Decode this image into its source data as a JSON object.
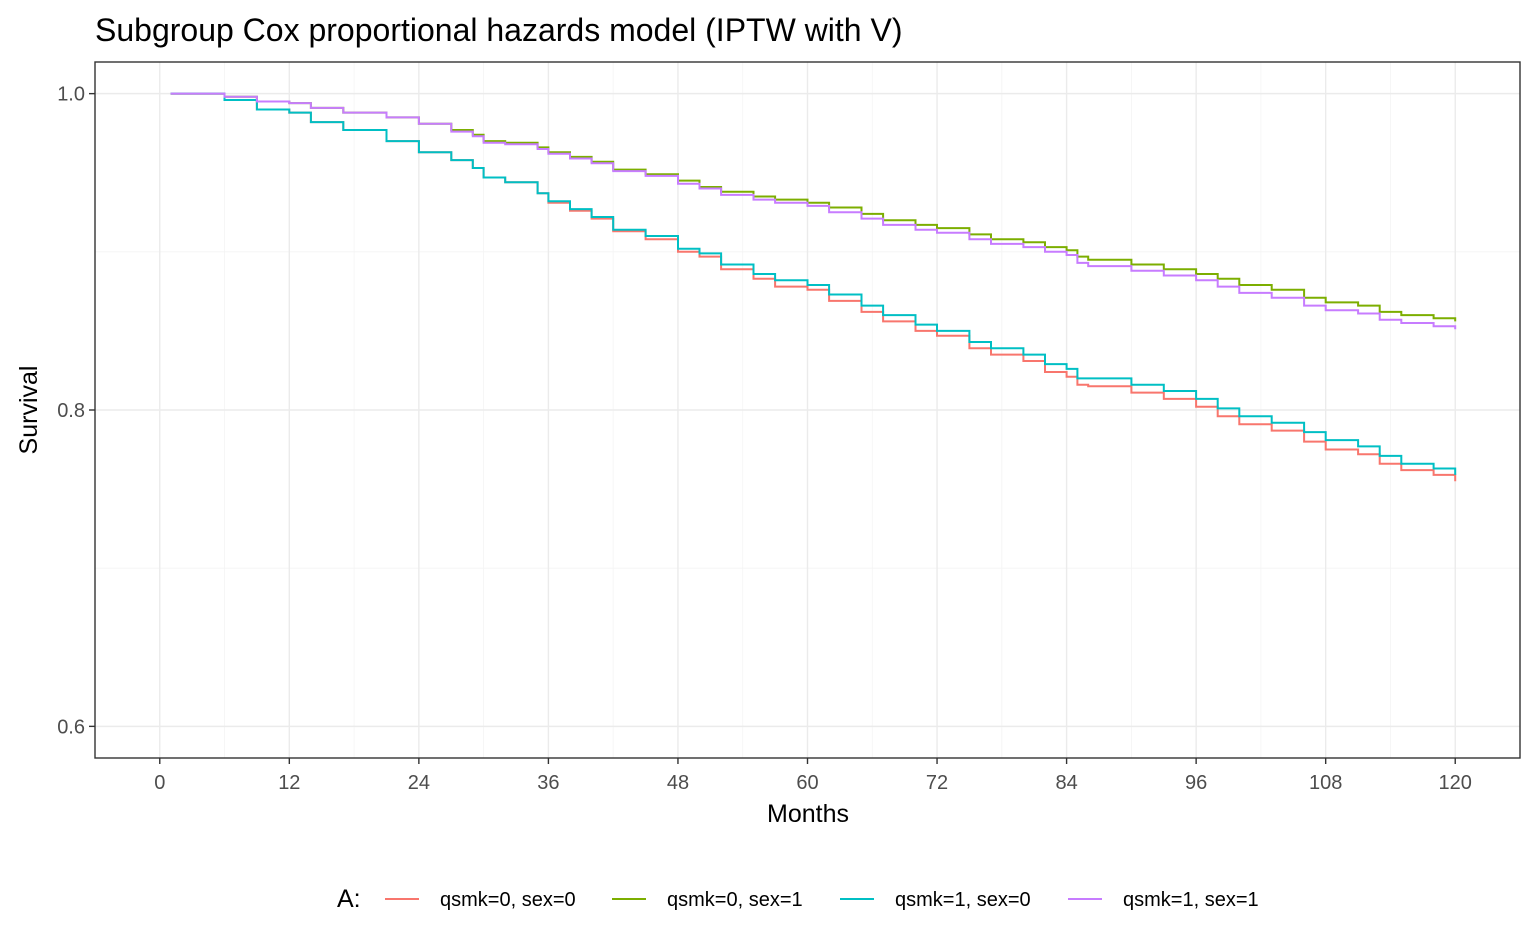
{
  "chart_data": {
    "type": "line",
    "title": "Subgroup Cox proportional hazards model (IPTW with V)",
    "xlabel": "Months",
    "ylabel": "Survival",
    "xlim": [
      -6,
      126
    ],
    "ylim": [
      0.58,
      1.02
    ],
    "x_ticks": [
      0,
      12,
      24,
      36,
      48,
      60,
      72,
      84,
      96,
      108,
      120
    ],
    "x_tick_labels": [
      "0",
      "12",
      "24",
      "36",
      "48",
      "60",
      "72",
      "84",
      "96",
      "108",
      "120"
    ],
    "y_ticks": [
      0.6,
      0.8,
      1.0
    ],
    "y_tick_labels": [
      "0.6",
      "0.8",
      "1.0"
    ],
    "y_minor": [
      0.7,
      0.9
    ],
    "grid": true,
    "legend": {
      "title": "A:",
      "position": "bottom"
    },
    "series": [
      {
        "name": "qsmk=0, sex=0",
        "color": "#F8766D",
        "x": [
          1,
          6,
          9,
          12,
          14,
          17,
          21,
          24,
          27,
          29,
          30,
          32,
          35,
          36,
          38,
          40,
          42,
          45,
          48,
          50,
          52,
          55,
          57,
          60,
          62,
          65,
          67,
          70,
          72,
          75,
          77,
          80,
          82,
          84,
          85,
          86,
          90,
          93,
          96,
          98,
          100,
          103,
          106,
          108,
          111,
          113,
          115,
          118,
          120
        ],
        "values": [
          1.0,
          0.996,
          0.99,
          0.988,
          0.982,
          0.977,
          0.97,
          0.963,
          0.958,
          0.953,
          0.947,
          0.944,
          0.937,
          0.931,
          0.926,
          0.921,
          0.913,
          0.908,
          0.9,
          0.897,
          0.889,
          0.883,
          0.878,
          0.876,
          0.869,
          0.862,
          0.856,
          0.85,
          0.847,
          0.839,
          0.835,
          0.831,
          0.824,
          0.821,
          0.816,
          0.815,
          0.811,
          0.807,
          0.802,
          0.796,
          0.791,
          0.787,
          0.78,
          0.775,
          0.772,
          0.766,
          0.762,
          0.759,
          0.755
        ]
      },
      {
        "name": "qsmk=0, sex=1",
        "color": "#7CAE00",
        "x": [
          1,
          6,
          9,
          12,
          14,
          17,
          21,
          24,
          27,
          29,
          30,
          32,
          35,
          36,
          38,
          40,
          42,
          45,
          48,
          50,
          52,
          55,
          57,
          60,
          62,
          65,
          67,
          70,
          72,
          75,
          77,
          80,
          82,
          84,
          85,
          86,
          90,
          93,
          96,
          98,
          100,
          103,
          106,
          108,
          111,
          113,
          115,
          118,
          120
        ],
        "values": [
          1.0,
          0.998,
          0.995,
          0.994,
          0.991,
          0.988,
          0.985,
          0.981,
          0.977,
          0.974,
          0.97,
          0.969,
          0.966,
          0.963,
          0.96,
          0.957,
          0.952,
          0.949,
          0.945,
          0.941,
          0.938,
          0.935,
          0.933,
          0.931,
          0.928,
          0.924,
          0.92,
          0.917,
          0.915,
          0.911,
          0.908,
          0.906,
          0.903,
          0.901,
          0.897,
          0.895,
          0.892,
          0.889,
          0.886,
          0.883,
          0.879,
          0.876,
          0.871,
          0.868,
          0.866,
          0.862,
          0.86,
          0.858,
          0.856
        ]
      },
      {
        "name": "qsmk=1, sex=0",
        "color": "#00BFC4",
        "x": [
          1,
          6,
          9,
          12,
          14,
          17,
          21,
          24,
          27,
          29,
          30,
          32,
          35,
          36,
          38,
          40,
          42,
          45,
          48,
          50,
          52,
          55,
          57,
          60,
          62,
          65,
          67,
          70,
          72,
          75,
          77,
          80,
          82,
          84,
          85,
          86,
          90,
          93,
          96,
          98,
          100,
          103,
          106,
          108,
          111,
          113,
          115,
          118,
          120
        ],
        "values": [
          1.0,
          0.996,
          0.99,
          0.988,
          0.982,
          0.977,
          0.97,
          0.963,
          0.958,
          0.953,
          0.947,
          0.944,
          0.937,
          0.932,
          0.927,
          0.922,
          0.914,
          0.91,
          0.902,
          0.899,
          0.892,
          0.886,
          0.882,
          0.879,
          0.873,
          0.866,
          0.86,
          0.854,
          0.85,
          0.843,
          0.839,
          0.835,
          0.829,
          0.826,
          0.82,
          0.82,
          0.816,
          0.812,
          0.807,
          0.801,
          0.796,
          0.792,
          0.786,
          0.781,
          0.777,
          0.771,
          0.766,
          0.763,
          0.759
        ]
      },
      {
        "name": "qsmk=1, sex=1",
        "color": "#C77CFF",
        "x": [
          1,
          6,
          9,
          12,
          14,
          17,
          21,
          24,
          27,
          29,
          30,
          32,
          35,
          36,
          38,
          40,
          42,
          45,
          48,
          50,
          52,
          55,
          57,
          60,
          62,
          65,
          67,
          70,
          72,
          75,
          77,
          80,
          82,
          84,
          85,
          86,
          90,
          93,
          96,
          98,
          100,
          103,
          106,
          108,
          111,
          113,
          115,
          118,
          120
        ],
        "values": [
          1.0,
          0.998,
          0.995,
          0.994,
          0.991,
          0.988,
          0.985,
          0.981,
          0.976,
          0.973,
          0.969,
          0.968,
          0.965,
          0.962,
          0.959,
          0.956,
          0.951,
          0.948,
          0.943,
          0.94,
          0.936,
          0.933,
          0.931,
          0.929,
          0.925,
          0.921,
          0.917,
          0.914,
          0.912,
          0.908,
          0.905,
          0.903,
          0.9,
          0.898,
          0.893,
          0.891,
          0.888,
          0.885,
          0.882,
          0.878,
          0.874,
          0.871,
          0.866,
          0.863,
          0.861,
          0.857,
          0.855,
          0.853,
          0.851
        ]
      }
    ]
  }
}
